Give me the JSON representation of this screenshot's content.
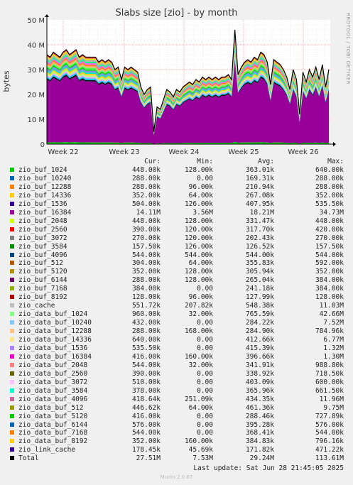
{
  "chart_data": {
    "type": "area",
    "title": "Slabs size [zio] - by month",
    "ylabel": "bytes",
    "ylim": [
      0,
      50
    ],
    "y_unit": "M",
    "y_ticks": [
      "0",
      "10 M",
      "20 M",
      "30 M",
      "40 M",
      "50 M"
    ],
    "x_ticks": [
      "Week 22",
      "Week 23",
      "Week 24",
      "Week 25",
      "Week 26"
    ],
    "grid": true,
    "legend_position": "bottom",
    "total_series": [
      [
        0,
        36
      ],
      [
        2,
        35
      ],
      [
        4,
        37
      ],
      [
        6,
        36
      ],
      [
        8,
        35
      ],
      [
        10,
        37
      ],
      [
        12,
        38
      ],
      [
        14,
        36
      ],
      [
        16,
        37
      ],
      [
        18,
        38
      ],
      [
        20,
        35
      ],
      [
        22,
        36
      ],
      [
        24,
        35
      ],
      [
        26,
        35
      ],
      [
        28,
        35
      ],
      [
        30,
        35
      ],
      [
        32,
        33
      ],
      [
        34,
        34
      ],
      [
        36,
        33
      ],
      [
        38,
        34
      ],
      [
        40,
        33
      ],
      [
        42,
        30
      ],
      [
        44,
        31
      ],
      [
        46,
        26
      ],
      [
        48,
        31
      ],
      [
        50,
        30
      ],
      [
        52,
        31
      ],
      [
        54,
        30
      ],
      [
        56,
        29
      ],
      [
        58,
        23
      ],
      [
        60,
        20
      ],
      [
        62,
        22
      ],
      [
        64,
        23
      ],
      [
        66,
        5
      ],
      [
        68,
        15
      ],
      [
        70,
        14
      ],
      [
        72,
        18
      ],
      [
        74,
        22
      ],
      [
        76,
        21
      ],
      [
        78,
        19
      ],
      [
        80,
        22
      ],
      [
        82,
        21
      ],
      [
        84,
        23
      ],
      [
        86,
        24
      ],
      [
        88,
        25
      ],
      [
        90,
        24
      ],
      [
        92,
        26
      ],
      [
        94,
        25
      ],
      [
        96,
        27
      ],
      [
        98,
        26
      ],
      [
        100,
        27
      ],
      [
        102,
        26
      ],
      [
        104,
        27
      ],
      [
        106,
        26
      ],
      [
        108,
        27
      ],
      [
        110,
        27
      ],
      [
        112,
        28
      ],
      [
        114,
        26
      ],
      [
        116,
        46
      ],
      [
        118,
        28
      ],
      [
        120,
        31
      ],
      [
        122,
        33
      ],
      [
        124,
        34
      ],
      [
        126,
        33
      ],
      [
        128,
        35
      ],
      [
        130,
        34
      ],
      [
        132,
        37
      ],
      [
        134,
        36
      ],
      [
        136,
        33
      ],
      [
        138,
        24
      ],
      [
        140,
        34
      ],
      [
        142,
        33
      ],
      [
        144,
        32
      ],
      [
        146,
        30
      ],
      [
        148,
        27
      ],
      [
        150,
        22
      ],
      [
        152,
        30
      ],
      [
        154,
        26
      ],
      [
        156,
        12
      ],
      [
        158,
        29
      ],
      [
        160,
        25
      ],
      [
        162,
        30
      ],
      [
        164,
        27
      ],
      [
        166,
        31
      ],
      [
        168,
        26
      ],
      [
        170,
        32
      ],
      [
        172,
        23
      ],
      [
        174,
        30
      ]
    ],
    "band_colors": [
      "#000000",
      "#aaaaaa",
      "#ff7d00",
      "#00cc00",
      "#ffcc00",
      "#00ccff",
      "#e0e000",
      "#ff4dff",
      "#4dff4d",
      "#00e0c0",
      "#e9a0ff",
      "#ff4040",
      "#00ff80",
      "#ffb080",
      "#8080ff",
      "#b0ff70"
    ],
    "base_color": "#990099"
  },
  "legend": {
    "headers": {
      "cur": "Cur:",
      "min": "Min:",
      "avg": "Avg:",
      "max": "Max:"
    },
    "rows": [
      {
        "name": "zio_buf_1024",
        "color": "#00cc00",
        "cur": "448.00k",
        "min": "128.00k",
        "avg": "363.01k",
        "max": "640.00k"
      },
      {
        "name": "zio_buf_10240",
        "color": "#0066b3",
        "cur": "288.00k",
        "min": "0.00",
        "avg": "169.31k",
        "max": "288.00k"
      },
      {
        "name": "zio_buf_12288",
        "color": "#ff8000",
        "cur": "288.00k",
        "min": "96.00k",
        "avg": "210.94k",
        "max": "288.00k"
      },
      {
        "name": "zio_buf_14336",
        "color": "#ffcc00",
        "cur": "352.00k",
        "min": "64.00k",
        "avg": "267.08k",
        "max": "352.00k"
      },
      {
        "name": "zio_buf_1536",
        "color": "#330099",
        "cur": "504.00k",
        "min": "126.00k",
        "avg": "407.95k",
        "max": "535.50k"
      },
      {
        "name": "zio_buf_16384",
        "color": "#990099",
        "cur": "14.11M",
        "min": "3.56M",
        "avg": "18.21M",
        "max": "34.73M"
      },
      {
        "name": "zio_buf_2048",
        "color": "#ccff00",
        "cur": "448.00k",
        "min": "128.00k",
        "avg": "331.47k",
        "max": "448.00k"
      },
      {
        "name": "zio_buf_2560",
        "color": "#ff0000",
        "cur": "390.00k",
        "min": "120.00k",
        "avg": "317.70k",
        "max": "420.00k"
      },
      {
        "name": "zio_buf_3072",
        "color": "#808080",
        "cur": "270.00k",
        "min": "120.00k",
        "avg": "202.43k",
        "max": "270.00k"
      },
      {
        "name": "zio_buf_3584",
        "color": "#008f00",
        "cur": "157.50k",
        "min": "126.00k",
        "avg": "126.52k",
        "max": "157.50k"
      },
      {
        "name": "zio_buf_4096",
        "color": "#00487d",
        "cur": "544.00k",
        "min": "544.00k",
        "avg": "544.00k",
        "max": "544.00k"
      },
      {
        "name": "zio_buf_512",
        "color": "#b35a00",
        "cur": "304.00k",
        "min": "64.00k",
        "avg": "355.83k",
        "max": "592.00k"
      },
      {
        "name": "zio_buf_5120",
        "color": "#b38f00",
        "cur": "352.00k",
        "min": "128.00k",
        "avg": "305.94k",
        "max": "352.00k"
      },
      {
        "name": "zio_buf_6144",
        "color": "#6b006b",
        "cur": "288.00k",
        "min": "128.00k",
        "avg": "265.04k",
        "max": "384.00k"
      },
      {
        "name": "zio_buf_7168",
        "color": "#8fb300",
        "cur": "384.00k",
        "min": "0.00",
        "avg": "241.18k",
        "max": "384.00k"
      },
      {
        "name": "zio_buf_8192",
        "color": "#b30000",
        "cur": "128.00k",
        "min": "96.00k",
        "avg": "127.99k",
        "max": "128.00k"
      },
      {
        "name": "zio_cache",
        "color": "#bebebe",
        "cur": "551.72k",
        "min": "207.82k",
        "avg": "548.38k",
        "max": "11.03M"
      },
      {
        "name": "zio_data_buf_1024",
        "color": "#80ff80",
        "cur": "960.00k",
        "min": "32.00k",
        "avg": "765.59k",
        "max": "42.66M"
      },
      {
        "name": "zio_data_buf_10240",
        "color": "#80c9ff",
        "cur": "432.00k",
        "min": "0.00",
        "avg": "284.22k",
        "max": "7.52M"
      },
      {
        "name": "zio_data_buf_12288",
        "color": "#ffc080",
        "cur": "288.00k",
        "min": "168.00k",
        "avg": "284.90k",
        "max": "784.96k"
      },
      {
        "name": "zio_data_buf_14336",
        "color": "#ffe680",
        "cur": "640.00k",
        "min": "0.00",
        "avg": "412.66k",
        "max": "6.77M"
      },
      {
        "name": "zio_data_buf_1536",
        "color": "#aa80ff",
        "cur": "535.50k",
        "min": "0.00",
        "avg": "415.39k",
        "max": "1.32M"
      },
      {
        "name": "zio_data_buf_16384",
        "color": "#ee00cc",
        "cur": "416.00k",
        "min": "160.00k",
        "avg": "396.66k",
        "max": "1.30M"
      },
      {
        "name": "zio_data_buf_2048",
        "color": "#ff8080",
        "cur": "544.00k",
        "min": "32.00k",
        "avg": "341.91k",
        "max": "988.80k"
      },
      {
        "name": "zio_data_buf_2560",
        "color": "#666600",
        "cur": "390.00k",
        "min": "0.00",
        "avg": "338.92k",
        "max": "718.50k"
      },
      {
        "name": "zio_data_buf_3072",
        "color": "#ffbfff",
        "cur": "510.00k",
        "min": "0.00",
        "avg": "403.09k",
        "max": "600.00k"
      },
      {
        "name": "zio_data_buf_3584",
        "color": "#00ffcc",
        "cur": "378.00k",
        "min": "0.00",
        "avg": "365.96k",
        "max": "661.50k"
      },
      {
        "name": "zio_data_buf_4096",
        "color": "#cc6699",
        "cur": "418.64k",
        "min": "251.09k",
        "avg": "434.35k",
        "max": "11.96M"
      },
      {
        "name": "zio_data_buf_512",
        "color": "#999900",
        "cur": "446.62k",
        "min": "64.00k",
        "avg": "461.36k",
        "max": "9.75M"
      },
      {
        "name": "zio_data_buf_5120",
        "color": "#00cc00",
        "cur": "416.00k",
        "min": "0.00",
        "avg": "288.46k",
        "max": "727.89k"
      },
      {
        "name": "zio_data_buf_6144",
        "color": "#0066b3",
        "cur": "576.00k",
        "min": "0.00",
        "avg": "395.28k",
        "max": "576.00k"
      },
      {
        "name": "zio_data_buf_7168",
        "color": "#ff8000",
        "cur": "544.00k",
        "min": "0.00",
        "avg": "368.41k",
        "max": "544.00k"
      },
      {
        "name": "zio_data_buf_8192",
        "color": "#ffcc00",
        "cur": "352.00k",
        "min": "160.00k",
        "avg": "384.83k",
        "max": "796.16k"
      },
      {
        "name": "zio_link_cache",
        "color": "#330099",
        "cur": "178.45k",
        "min": "45.69k",
        "avg": "171.82k",
        "max": "471.22k"
      },
      {
        "name": "Total",
        "color": "#000000",
        "cur": "27.51M",
        "min": "7.53M",
        "avg": "29.24M",
        "max": "113.61M"
      }
    ]
  },
  "footer": {
    "last_update": "Last update: Sat Jun 28 21:45:05 2025",
    "munin": "Munin 2.0.67",
    "rrdtool": "RRDTOOL / TOBI OETIKER"
  }
}
